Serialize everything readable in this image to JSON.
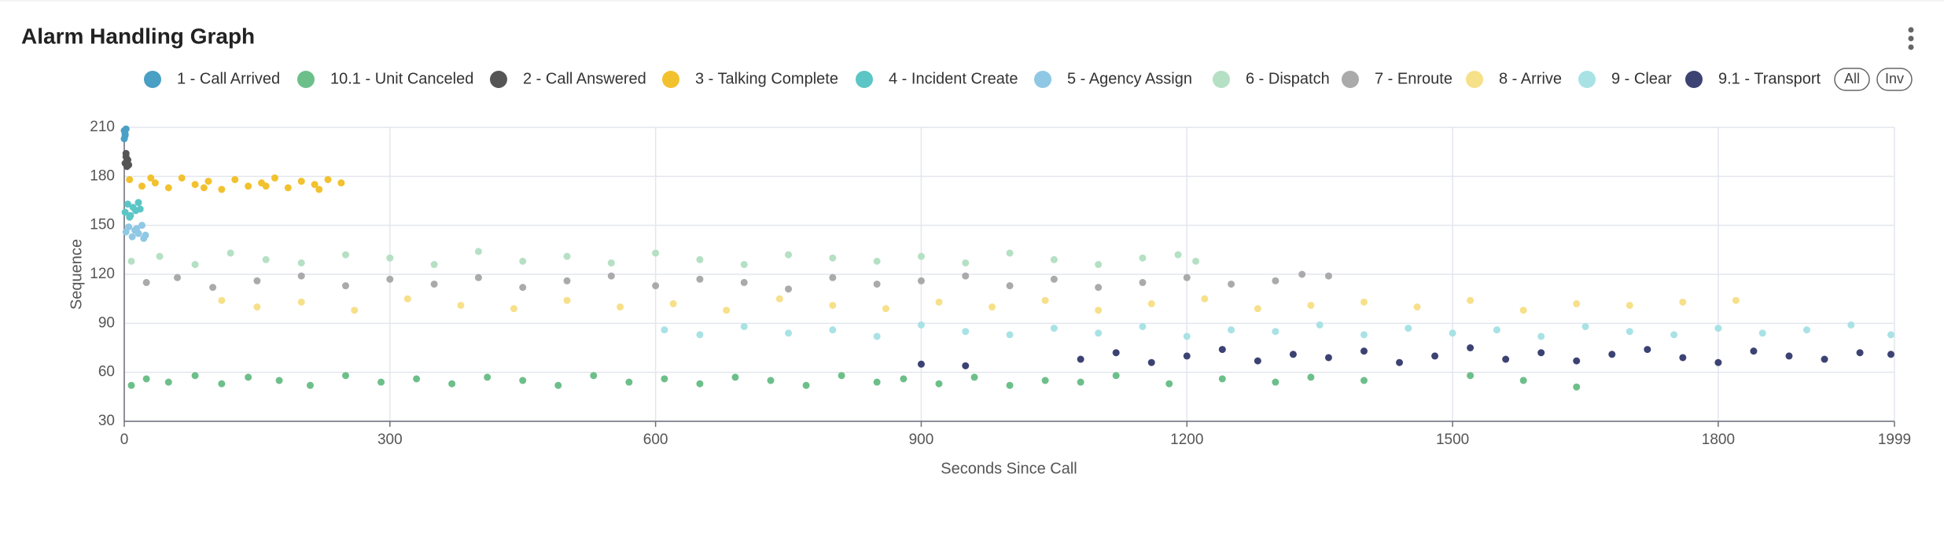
{
  "chart_data": {
    "type": "scatter",
    "title": "Alarm Handling Graph",
    "x_label": "Seconds Since Call",
    "y_label": "Sequence",
    "xlim": [
      0,
      1999
    ],
    "ylim": [
      30,
      210
    ],
    "xticks": [
      0,
      300,
      600,
      900,
      1200,
      1500,
      1800,
      1999
    ],
    "yticks": [
      30,
      60,
      90,
      120,
      150,
      180,
      210
    ],
    "grid": true,
    "legend_buttons": [
      "All",
      "Inv"
    ],
    "series": [
      {
        "name": "1 - Call Arrived",
        "color": "#4a9fc4",
        "x": [
          0,
          1,
          0,
          2,
          1
        ],
        "values": [
          208,
          205,
          203,
          209,
          206
        ]
      },
      {
        "name": "10.1 - Unit Canceled",
        "color": "#6dbf8a",
        "x": [
          8,
          25,
          50,
          80,
          110,
          140,
          175,
          210,
          250,
          290,
          330,
          370,
          410,
          450,
          490,
          530,
          570,
          610,
          650,
          690,
          730,
          770,
          810,
          850,
          880,
          920,
          960,
          1000,
          1040,
          1080,
          1120,
          1180,
          1240,
          1300,
          1340,
          1400,
          1520,
          1580,
          1640
        ],
        "values": [
          52,
          56,
          54,
          58,
          53,
          57,
          55,
          52,
          58,
          54,
          56,
          53,
          57,
          55,
          52,
          58,
          54,
          56,
          53,
          57,
          55,
          52,
          58,
          54,
          56,
          53,
          57,
          52,
          55,
          54,
          58,
          53,
          56,
          54,
          57,
          55,
          58,
          55,
          51
        ]
      },
      {
        "name": "2 - Call Answered",
        "color": "#555555",
        "x": [
          1,
          2,
          3,
          4,
          5,
          2,
          3
        ],
        "values": [
          188,
          192,
          186,
          190,
          187,
          194,
          189
        ]
      },
      {
        "name": "3 - Talking Complete",
        "color": "#f2c12e",
        "x": [
          6,
          20,
          35,
          50,
          65,
          80,
          95,
          110,
          125,
          140,
          155,
          170,
          185,
          200,
          215,
          230,
          245,
          30,
          90,
          160,
          220
        ],
        "values": [
          178,
          174,
          176,
          173,
          179,
          175,
          177,
          172,
          178,
          174,
          176,
          179,
          173,
          177,
          175,
          178,
          176,
          179,
          173,
          174,
          172
        ]
      },
      {
        "name": "4 - Incident Create",
        "color": "#5cc6c6",
        "x": [
          1,
          4,
          7,
          10,
          13,
          16,
          18,
          6
        ],
        "values": [
          158,
          163,
          156,
          161,
          159,
          164,
          160,
          155
        ]
      },
      {
        "name": "5 - Agency Assign",
        "color": "#8fc8e4",
        "x": [
          2,
          5,
          9,
          12,
          16,
          20,
          24,
          14,
          22
        ],
        "values": [
          146,
          149,
          143,
          147,
          145,
          150,
          144,
          148,
          142
        ]
      },
      {
        "name": "6 - Dispatch",
        "color": "#b5e0c4",
        "x": [
          8,
          40,
          80,
          120,
          160,
          200,
          250,
          300,
          350,
          400,
          450,
          500,
          550,
          600,
          650,
          700,
          750,
          800,
          850,
          900,
          950,
          1000,
          1050,
          1100,
          1150,
          1190,
          1210
        ],
        "values": [
          128,
          131,
          126,
          133,
          129,
          127,
          132,
          130,
          126,
          134,
          128,
          131,
          127,
          133,
          129,
          126,
          132,
          130,
          128,
          131,
          127,
          133,
          129,
          126,
          130,
          132,
          128
        ]
      },
      {
        "name": "7 - Enroute",
        "color": "#aaaaaa",
        "x": [
          25,
          60,
          100,
          150,
          200,
          250,
          300,
          350,
          400,
          450,
          500,
          550,
          600,
          650,
          700,
          750,
          800,
          850,
          900,
          950,
          1000,
          1050,
          1100,
          1150,
          1200,
          1250,
          1300,
          1330,
          1360
        ],
        "values": [
          115,
          118,
          112,
          116,
          119,
          113,
          117,
          114,
          118,
          112,
          116,
          119,
          113,
          117,
          115,
          111,
          118,
          114,
          116,
          119,
          113,
          117,
          112,
          115,
          118,
          114,
          116,
          120,
          119
        ]
      },
      {
        "name": "8 - Arrive",
        "color": "#f7e08a",
        "x": [
          110,
          150,
          200,
          260,
          320,
          380,
          440,
          500,
          560,
          620,
          680,
          740,
          800,
          860,
          920,
          980,
          1040,
          1100,
          1160,
          1220,
          1280,
          1340,
          1400,
          1460,
          1520,
          1580,
          1640,
          1700,
          1760,
          1820
        ],
        "values": [
          104,
          100,
          103,
          98,
          105,
          101,
          99,
          104,
          100,
          102,
          98,
          105,
          101,
          99,
          103,
          100,
          104,
          98,
          102,
          105,
          99,
          101,
          103,
          100,
          104,
          98,
          102,
          101,
          103,
          104
        ]
      },
      {
        "name": "9 - Clear",
        "color": "#a8e2e5",
        "x": [
          610,
          650,
          700,
          750,
          800,
          850,
          900,
          950,
          1000,
          1050,
          1100,
          1150,
          1200,
          1250,
          1300,
          1350,
          1400,
          1450,
          1500,
          1550,
          1600,
          1650,
          1700,
          1750,
          1800,
          1850,
          1900,
          1950,
          1995
        ],
        "values": [
          86,
          83,
          88,
          84,
          86,
          82,
          89,
          85,
          83,
          87,
          84,
          88,
          82,
          86,
          85,
          89,
          83,
          87,
          84,
          86,
          82,
          88,
          85,
          83,
          87,
          84,
          86,
          89,
          83
        ]
      },
      {
        "name": "9.1 - Transport",
        "color": "#3c4373",
        "x": [
          900,
          950,
          1080,
          1120,
          1160,
          1200,
          1240,
          1280,
          1320,
          1360,
          1400,
          1440,
          1480,
          1520,
          1560,
          1600,
          1640,
          1680,
          1720,
          1760,
          1800,
          1840,
          1880,
          1920,
          1960,
          1995
        ],
        "values": [
          65,
          64,
          68,
          72,
          66,
          70,
          74,
          67,
          71,
          69,
          73,
          66,
          70,
          75,
          68,
          72,
          67,
          71,
          74,
          69,
          66,
          73,
          70,
          68,
          72,
          71
        ]
      }
    ]
  }
}
